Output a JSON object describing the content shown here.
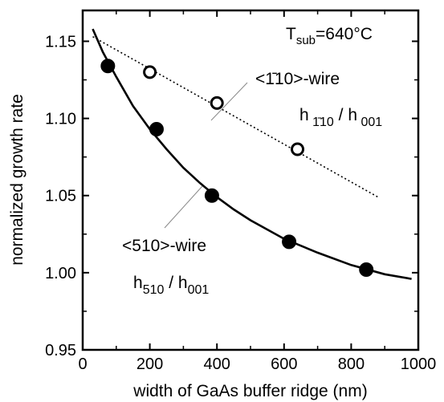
{
  "chart_data": {
    "type": "scatter",
    "title": "",
    "xlabel": "width of GaAs buffer ridge (nm)",
    "ylabel": "normalized growth rate",
    "xlim": [
      0,
      1000
    ],
    "ylim": [
      0.95,
      1.17
    ],
    "xticks": [
      0,
      200,
      400,
      600,
      800,
      1000
    ],
    "yticks": [
      0.95,
      1.0,
      1.05,
      1.1,
      1.15
    ],
    "xtick_labels": [
      "0",
      "200",
      "400",
      "600",
      "800",
      "1000"
    ],
    "ytick_labels": [
      "0.95",
      "1.00",
      "1.05",
      "1.10",
      "1.15"
    ],
    "grid": false,
    "series": [
      {
        "marker": "open-circle",
        "line_style": "dotted",
        "points": [
          {
            "x": 200,
            "y": 1.13
          },
          {
            "x": 400,
            "y": 1.11
          },
          {
            "x": 640,
            "y": 1.08
          }
        ],
        "fit": {
          "from": [
            30,
            1.153
          ],
          "to": [
            880,
            1.049
          ]
        }
      },
      {
        "marker": "filled-circle",
        "line_style": "solid",
        "points": [
          {
            "x": 75,
            "y": 1.134
          },
          {
            "x": 220,
            "y": 1.093
          },
          {
            "x": 385,
            "y": 1.05
          },
          {
            "x": 615,
            "y": 1.02
          },
          {
            "x": 845,
            "y": 1.002
          }
        ],
        "fit_curve": [
          [
            30,
            1.158
          ],
          [
            60,
            1.143
          ],
          [
            100,
            1.127
          ],
          [
            150,
            1.108
          ],
          [
            200,
            1.093
          ],
          [
            250,
            1.08
          ],
          [
            300,
            1.068
          ],
          [
            350,
            1.058
          ],
          [
            400,
            1.049
          ],
          [
            450,
            1.041
          ],
          [
            500,
            1.034
          ],
          [
            600,
            1.022
          ],
          [
            700,
            1.013
          ],
          [
            800,
            1.005
          ],
          [
            900,
            0.999
          ],
          [
            980,
            0.996
          ]
        ]
      }
    ],
    "annotations": {
      "tsub": {
        "T": "T",
        "sub": "sub",
        "rest": "=640°C"
      },
      "wire110": {
        "label": "<1̄10>-wire",
        "h": "h",
        "h_sub": " 1̄10",
        "slash": " / h",
        "h001_sub": " 001"
      },
      "wire510": {
        "label": "<510>-wire",
        "h": "h",
        "h_sub": "510",
        "slash": " / h",
        "h001_sub": "001"
      }
    }
  }
}
